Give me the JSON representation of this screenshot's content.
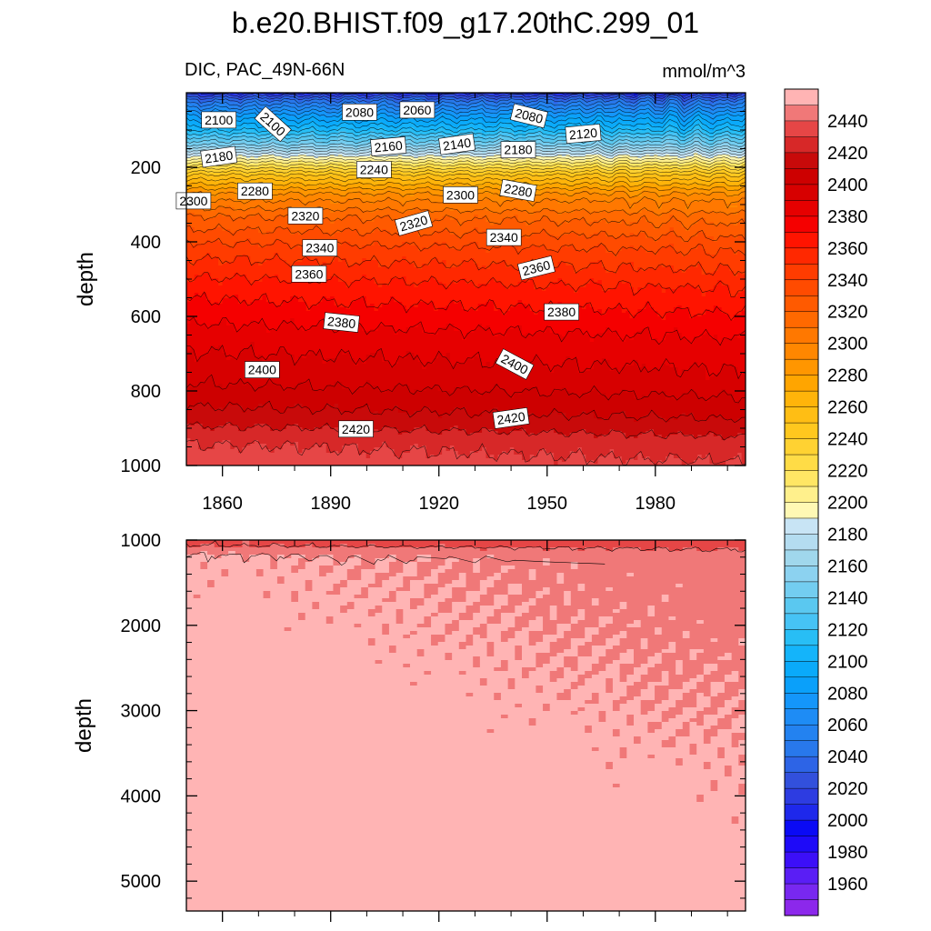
{
  "chart_data": {
    "type": "heatmap",
    "title": "b.e20.BHIST.f09_g17.20thC.299_01",
    "left_label": "DIC, PAC_49N-66N",
    "units": "mmol/m^3",
    "ylabel": "depth",
    "x_range": [
      1850,
      2005
    ],
    "x_ticks": [
      1860,
      1890,
      1920,
      1950,
      1980
    ],
    "upper_panel": {
      "ylim": [
        0,
        1000
      ],
      "y_ticks": [
        200,
        400,
        600,
        800,
        1000
      ],
      "grid": false,
      "contour_labels": [
        {
          "text": "2100",
          "x": 1859,
          "y": 73,
          "angle": 0
        },
        {
          "text": "2100",
          "x": 1874,
          "y": 84,
          "angle": 42
        },
        {
          "text": "2080",
          "x": 1898,
          "y": 52,
          "angle": 0
        },
        {
          "text": "2060",
          "x": 1914,
          "y": 46,
          "angle": 0
        },
        {
          "text": "2080",
          "x": 1945,
          "y": 62,
          "angle": 14
        },
        {
          "text": "2120",
          "x": 1960,
          "y": 110,
          "angle": -5
        },
        {
          "text": "2180",
          "x": 1859,
          "y": 172,
          "angle": -8
        },
        {
          "text": "2160",
          "x": 1906,
          "y": 144,
          "angle": -5
        },
        {
          "text": "2140",
          "x": 1925,
          "y": 138,
          "angle": -8
        },
        {
          "text": "2180",
          "x": 1942,
          "y": 153,
          "angle": 0
        },
        {
          "text": "2240",
          "x": 1902,
          "y": 206,
          "angle": 0
        },
        {
          "text": "2300",
          "x": 1852,
          "y": 290,
          "angle": 0
        },
        {
          "text": "2280",
          "x": 1869,
          "y": 264,
          "angle": 0
        },
        {
          "text": "2300",
          "x": 1926,
          "y": 274,
          "angle": 0
        },
        {
          "text": "2280",
          "x": 1942,
          "y": 262,
          "angle": 10
        },
        {
          "text": "2320",
          "x": 1883,
          "y": 330,
          "angle": 0
        },
        {
          "text": "2320",
          "x": 1913,
          "y": 350,
          "angle": -16
        },
        {
          "text": "2340",
          "x": 1887,
          "y": 416,
          "angle": 0
        },
        {
          "text": "2340",
          "x": 1938,
          "y": 388,
          "angle": 0
        },
        {
          "text": "2360",
          "x": 1884,
          "y": 486,
          "angle": 0
        },
        {
          "text": "2360",
          "x": 1947,
          "y": 470,
          "angle": -14
        },
        {
          "text": "2380",
          "x": 1893,
          "y": 616,
          "angle": 6
        },
        {
          "text": "2380",
          "x": 1954,
          "y": 588,
          "angle": 0
        },
        {
          "text": "2400",
          "x": 1871,
          "y": 743,
          "angle": 0
        },
        {
          "text": "2400",
          "x": 1941,
          "y": 728,
          "angle": 28
        },
        {
          "text": "2420",
          "x": 1897,
          "y": 902,
          "angle": 0
        },
        {
          "text": "2420",
          "x": 1940,
          "y": 873,
          "angle": -8
        }
      ]
    },
    "lower_panel": {
      "ylim": [
        1000,
        5350
      ],
      "y_ticks": [
        1000,
        2000,
        3000,
        4000,
        5000
      ],
      "grid": false
    },
    "colorbar": {
      "orientation": "vertical",
      "placement": "right",
      "levels": [
        1940,
        1950,
        1960,
        1970,
        1980,
        1990,
        2000,
        2010,
        2020,
        2030,
        2040,
        2050,
        2060,
        2070,
        2080,
        2090,
        2100,
        2110,
        2120,
        2130,
        2140,
        2150,
        2160,
        2170,
        2180,
        2190,
        2200,
        2210,
        2220,
        2230,
        2240,
        2250,
        2260,
        2270,
        2280,
        2290,
        2300,
        2310,
        2320,
        2330,
        2340,
        2350,
        2360,
        2370,
        2380,
        2390,
        2400,
        2410,
        2420,
        2430,
        2440,
        2450,
        2460
      ],
      "labels": [
        1960,
        1980,
        2000,
        2020,
        2040,
        2060,
        2080,
        2100,
        2120,
        2140,
        2160,
        2180,
        2200,
        2220,
        2240,
        2260,
        2280,
        2300,
        2320,
        2340,
        2360,
        2380,
        2400,
        2420,
        2440
      ],
      "colors": [
        "#8c28eb",
        "#7828f0",
        "#5a1ef5",
        "#3c0ff8",
        "#1e0af8",
        "#0a0af5",
        "#1e28eb",
        "#2d3ce1",
        "#3250dc",
        "#2d64e6",
        "#2878eb",
        "#2382f0",
        "#1e8cf5",
        "#1496fa",
        "#0aa0fa",
        "#0aaafa",
        "#14b4fa",
        "#28bef5",
        "#46c3f5",
        "#5ac8f0",
        "#73cdf0",
        "#8cd2f0",
        "#a0d7ec",
        "#b4dcf0",
        "#c8e4f5",
        "#fff8b4",
        "#fff08c",
        "#ffe664",
        "#ffdc46",
        "#ffd232",
        "#ffc81e",
        "#ffbe14",
        "#ffb40a",
        "#ffa500",
        "#ff9600",
        "#ff8700",
        "#ff7800",
        "#ff6900",
        "#ff5a00",
        "#ff4b00",
        "#ff3c00",
        "#ff2800",
        "#ff1400",
        "#f50000",
        "#e60000",
        "#d70000",
        "#cd0000",
        "#c80a0a",
        "#d72828",
        "#e64646",
        "#f07878",
        "#ffb4b4"
      ]
    }
  }
}
